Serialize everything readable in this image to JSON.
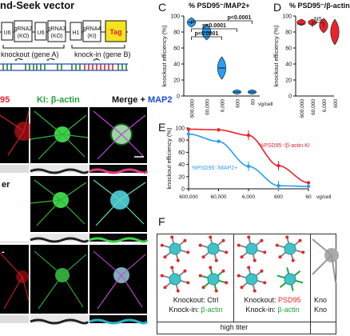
{
  "header": {
    "vector_title": "nd-Seek vector",
    "knockout_label": "knockout (gene A)",
    "knockin_label": "knock-in (gene B)"
  },
  "vector": {
    "boxes": [
      {
        "top": "U6",
        "bottom": ""
      },
      {
        "top": "gRNA2",
        "bottom": "(KO)"
      },
      {
        "top": "U6",
        "bottom": ""
      },
      {
        "top": "gRNA3",
        "bottom": "(KO)"
      },
      {
        "top": "H1",
        "bottom": ""
      },
      {
        "top": "gRNA4",
        "bottom": "(KI)"
      },
      {
        "top": "Tag",
        "bottom": ""
      }
    ]
  },
  "microscopy": {
    "col1_label": "95",
    "col2_label_prefix": "KI: ",
    "col2_label_target": "β-actin",
    "col3_label_prefix": "Merge + ",
    "col3_label_target": "MAP2",
    "row2_label": "er",
    "row3_label": "-"
  },
  "panels": {
    "C": {
      "letter": "C",
      "title": "% PSD95⁻/MAP2+"
    },
    "D": {
      "letter": "D",
      "title": "% PSD95⁻/β-actin"
    },
    "E": {
      "letter": "E"
    },
    "F": {
      "letter": "F"
    }
  },
  "chart_data": [
    {
      "type": "violin",
      "panel": "C",
      "title": "% PSD95⁻/MAP2+",
      "ylabel": "knockout efficiency (%)",
      "xlabel": "vg/cell",
      "categories": [
        "600,000",
        "60,000",
        "6,000",
        "600",
        "60"
      ],
      "values": [
        92,
        80,
        35,
        5,
        5
      ],
      "ylim": [
        0,
        100
      ],
      "yticks": [
        0,
        20,
        40,
        60,
        80,
        100
      ],
      "annotations": [
        "p<0.0001",
        "p<0.0001",
        "p<0.0001"
      ]
    },
    {
      "type": "violin",
      "panel": "D",
      "title": "% PSD95⁻/β-actin",
      "ylabel": "knockout efficiency (%)",
      "categories": [
        "600,000",
        "60,000",
        "6,000",
        "600"
      ],
      "values": [
        92,
        92,
        88,
        80
      ],
      "ylim": [
        0,
        100
      ],
      "yticks": [
        0,
        20,
        40,
        60,
        80,
        100
      ],
      "annotations": [
        "NS"
      ]
    },
    {
      "type": "line",
      "panel": "E",
      "ylabel": "knockout efficiency (%)",
      "xlabel": "vg/cell",
      "categories": [
        "600,000",
        "60,000",
        "6,000",
        "600",
        "60"
      ],
      "ylim": [
        0,
        100
      ],
      "yticks": [
        0,
        20,
        40,
        60,
        80,
        100
      ],
      "series": [
        {
          "name": "%PSD95⁻/β-actin KI",
          "color": "#e8242b",
          "values": [
            98,
            97,
            88,
            38,
            10
          ]
        },
        {
          "name": "%PSD95⁻/MAP2+",
          "color": "#2a9df4",
          "values": [
            90,
            78,
            37,
            5,
            4
          ]
        }
      ]
    }
  ],
  "panelF": {
    "cells": [
      {
        "knockout_prefix": "Knockout: ",
        "knockout_value": "Ctrl",
        "knockin_prefix": "Knock-in: ",
        "knockin_value": "β-actin"
      },
      {
        "knockout_prefix": "Knockout: ",
        "knockout_value": "PSD95",
        "knockin_prefix": "Knock-in: ",
        "knockin_value": "β-actin"
      },
      {
        "knockout_prefix": "Kno",
        "knockout_value": "",
        "knockin_prefix": "Kno",
        "knockin_value": ""
      }
    ],
    "footer": "high titer"
  },
  "colors": {
    "red": "#e8242b",
    "green": "#23a33a",
    "blue": "#1b4de0",
    "cyan": "#2a9df4"
  }
}
